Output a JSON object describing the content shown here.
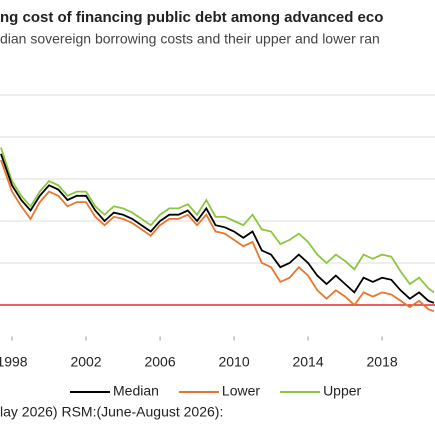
{
  "chart_data": {
    "type": "line",
    "title": "ng cost of financing public debt among advanced eco",
    "subtitle": "dian sovereign borrowing costs and their upper and lower ran",
    "footnote": "lay 2026) RSM:(June-August 2026):",
    "x": [
      1997.4,
      1998,
      1998.5,
      1999,
      1999.5,
      2000,
      2000.5,
      2001,
      2001.5,
      2002,
      2002.5,
      2003,
      2003.5,
      2004,
      2004.5,
      2005,
      2005.5,
      2006,
      2006.5,
      2007,
      2007.5,
      2008,
      2008.5,
      2009,
      2009.5,
      2010,
      2010.5,
      2011,
      2011.5,
      2012,
      2012.5,
      2013,
      2013.5,
      2014,
      2014.5,
      2015,
      2015.5,
      2016,
      2016.5,
      2017,
      2017.5,
      2018,
      2018.5,
      2019,
      2019.5,
      2020,
      2020.5,
      2020.8
    ],
    "series": [
      {
        "name": "Median",
        "color": "#000000",
        "values": [
          7.2,
          5.7,
          5.0,
          4.5,
          5.2,
          5.7,
          5.5,
          5.0,
          5.2,
          5.2,
          4.5,
          4.0,
          4.4,
          4.3,
          4.1,
          3.8,
          3.5,
          4.0,
          4.3,
          4.3,
          4.5,
          4.0,
          4.6,
          3.8,
          3.7,
          3.5,
          3.2,
          3.5,
          2.6,
          2.4,
          1.8,
          2.0,
          2.4,
          2.0,
          1.4,
          1.0,
          1.4,
          1.0,
          0.6,
          1.3,
          1.1,
          1.3,
          1.2,
          0.7,
          0.3,
          0.6,
          0.2,
          0.1
        ]
      },
      {
        "name": "Lower",
        "color": "#e8772e",
        "values": [
          6.9,
          5.4,
          4.7,
          4.1,
          4.9,
          5.4,
          5.2,
          4.7,
          4.9,
          4.9,
          4.2,
          3.8,
          4.2,
          4.1,
          3.9,
          3.6,
          3.3,
          3.8,
          4.1,
          4.1,
          4.3,
          3.8,
          4.3,
          3.5,
          3.4,
          3.1,
          2.8,
          3.0,
          2.0,
          1.8,
          1.1,
          1.3,
          1.8,
          1.4,
          0.7,
          0.3,
          0.7,
          0.4,
          0.0,
          0.6,
          0.4,
          0.6,
          0.5,
          0.2,
          -0.1,
          0.2,
          -0.2,
          -0.3
        ]
      },
      {
        "name": "Upper",
        "color": "#8cc63f",
        "values": [
          7.5,
          5.9,
          5.2,
          4.7,
          5.4,
          5.9,
          5.7,
          5.2,
          5.4,
          5.4,
          4.7,
          4.3,
          4.7,
          4.6,
          4.4,
          4.1,
          3.8,
          4.3,
          4.6,
          4.6,
          4.8,
          4.3,
          5.0,
          4.2,
          4.2,
          4.0,
          3.8,
          4.3,
          3.6,
          3.5,
          2.9,
          3.1,
          3.4,
          3.0,
          2.4,
          2.0,
          2.4,
          2.1,
          1.7,
          2.4,
          2.2,
          2.4,
          2.3,
          1.6,
          1.0,
          1.3,
          0.8,
          0.6
        ]
      }
    ],
    "xlim": [
      1997.35,
      2020.86
    ],
    "xticks": [
      1998,
      2002,
      2006,
      2010,
      2014,
      2018
    ],
    "ylim": [
      -1.5,
      11.5
    ],
    "yticks": [
      0,
      2,
      4,
      6,
      8,
      10
    ],
    "grid": true,
    "zero_line_color": "#e00000",
    "legend": "bottom"
  }
}
